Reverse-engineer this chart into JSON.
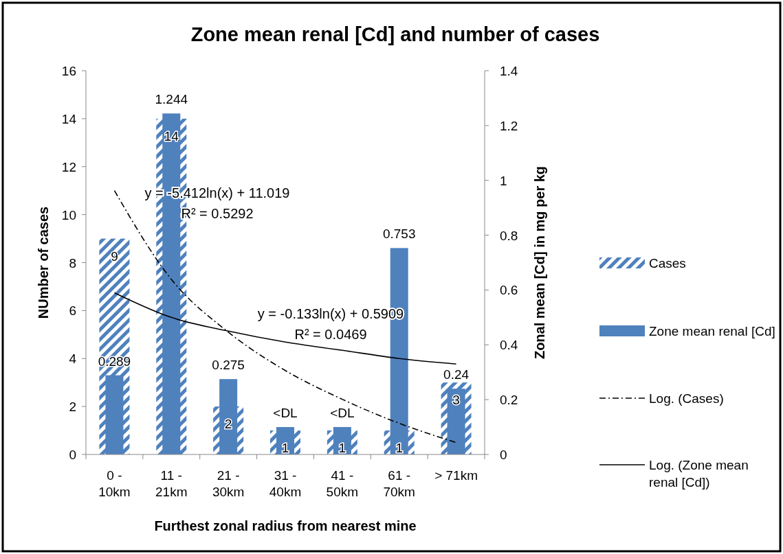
{
  "chart_data": {
    "type": "bar",
    "title": "Zone mean renal [Cd] and number of cases",
    "xlabel": "Furthest zonal radius from nearest mine",
    "ylabel": "NUmber of cases",
    "y2label": "Zonal mean [Cd] in mg per kg",
    "categories": [
      "0 - 10km",
      "11 - 21km",
      "21 - 30km",
      "31 - 40km",
      "41 - 50km",
      "61 - 70km",
      "> 71km"
    ],
    "series": [
      {
        "name": "Cases",
        "color": "#4f81bd",
        "values": [
          9,
          14,
          2,
          1,
          1,
          1,
          3
        ],
        "value_labels": [
          "9",
          "14",
          "2",
          "1",
          "1",
          "1",
          "3"
        ]
      },
      {
        "name": "Zone mean renal [Cd]",
        "axis": "y2",
        "color": "#4f81bd",
        "values": [
          0.289,
          1.244,
          0.275,
          0.1,
          0.1,
          0.753,
          0.24
        ],
        "value_labels": [
          "0.289",
          "1.244",
          "0.275",
          "<DL",
          "<DL",
          "0.753",
          "0.24"
        ]
      },
      {
        "name": "Log. (Cases)",
        "type": "line",
        "color": "#000000",
        "line_style": "dashed",
        "values": [
          11.0,
          7.3,
          5.1,
          3.5,
          2.3,
          1.3,
          0.5
        ]
      },
      {
        "name": "Log. (Zone mean renal [Cd])",
        "type": "line",
        "axis": "y2",
        "color": "#000000",
        "line_style": "solid",
        "values": [
          0.59,
          0.5,
          0.45,
          0.41,
          0.38,
          0.35,
          0.33
        ]
      }
    ],
    "ylim": [
      0,
      16
    ],
    "yticks": [
      0,
      2,
      4,
      6,
      8,
      10,
      12,
      14,
      16
    ],
    "y2lim": [
      0,
      1.4
    ],
    "y2ticks": [
      {
        "value": 0,
        "label": "0"
      },
      {
        "value": 0.2,
        "label": "0.2"
      },
      {
        "value": 0.4,
        "label": "0.4"
      },
      {
        "value": 0.6,
        "label": "0.6"
      },
      {
        "value": 0.8,
        "label": "0.8"
      },
      {
        "value": 1,
        "label": "1"
      },
      {
        "value": 1.2,
        "label": "1.2"
      },
      {
        "value": 1.4,
        "label": "1.4"
      }
    ],
    "annotations": [
      "y = -5.412ln(x) + 11.019",
      "R² = 0.5292",
      "y = -0.133ln(x) + 0.5909",
      "R² = 0.0469"
    ],
    "legend": "right",
    "grid": false
  }
}
